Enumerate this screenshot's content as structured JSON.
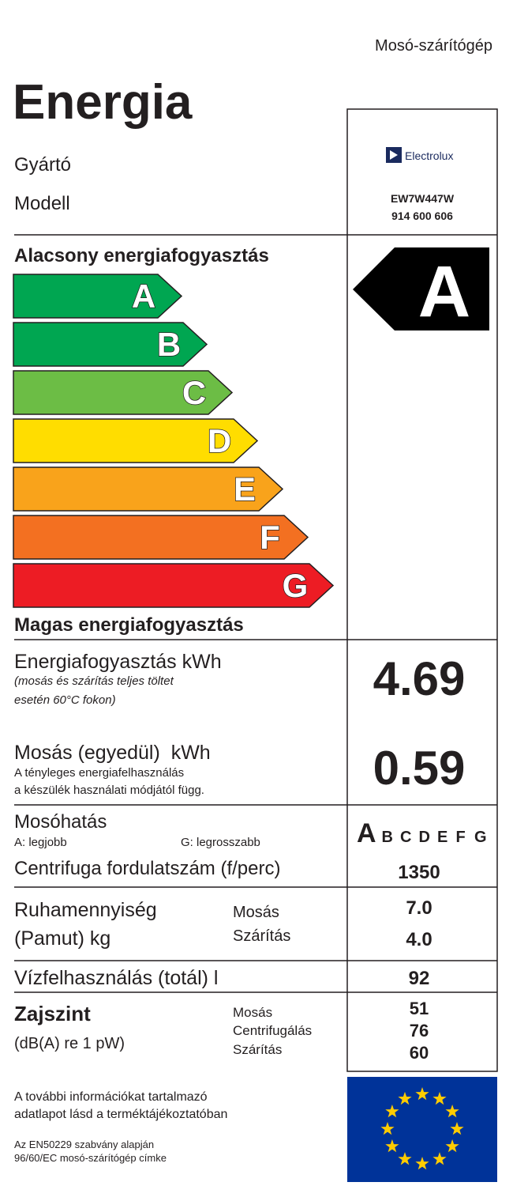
{
  "header": {
    "product_type": "Mosó-szárítógép",
    "title": "Energia",
    "manufacturer_label": "Gyártó",
    "model_label": "Modell",
    "manufacturer": "Electrolux",
    "model": "EW7W447W",
    "product_number": "914 600 606"
  },
  "energy_scale": {
    "low_label": "Alacsony energiafogyasztás",
    "high_label": "Magas energiafogyasztás",
    "classes": [
      "A",
      "B",
      "C",
      "D",
      "E",
      "F",
      "G"
    ],
    "rating": "A"
  },
  "energy_consumption": {
    "label": "Energiafogyasztás kWh",
    "note": [
      "(mosás és szárítás teljes töltet",
      "esetén 60°C fokon)"
    ],
    "value": "4.69"
  },
  "wash_energy": {
    "label": "Mosás (egyedül)  kWh",
    "note": [
      "A tényleges energiafelhasználás",
      "a készülék használati módjától függ."
    ],
    "value": "0.59"
  },
  "washing_performance": {
    "label": "Mosóhatás",
    "best": "A: legjobb",
    "worst": "G: legrosszabb",
    "scale": [
      "A",
      "B",
      "C",
      "D",
      "E",
      "F",
      "G"
    ]
  },
  "spin_speed": {
    "label": "Centrifuga fordulatszám (f/perc)",
    "value": "1350"
  },
  "capacity": {
    "label": [
      "Ruhamennyiség",
      "(Pamut) kg"
    ],
    "rows": [
      [
        "Mosás",
        "7.0"
      ],
      [
        "Szárítás",
        "4.0"
      ]
    ]
  },
  "water": {
    "label": "Vízfelhasználás (totál) l",
    "value": "92"
  },
  "noise": {
    "label": "Zajszint",
    "unit": "(dB(A) re 1 pW)",
    "rows": [
      [
        "Mosás",
        "51"
      ],
      [
        "Centrifugálás",
        "76"
      ],
      [
        "Szárítás",
        "60"
      ]
    ]
  },
  "footer": {
    "info": [
      "A további információkat tartalmazó",
      "adatlapot lásd a terméktájékoztatóban"
    ],
    "standard": [
      "Az EN50229 szabvány alapján",
      "96/60/EC mosó-szárítógép címke"
    ]
  }
}
